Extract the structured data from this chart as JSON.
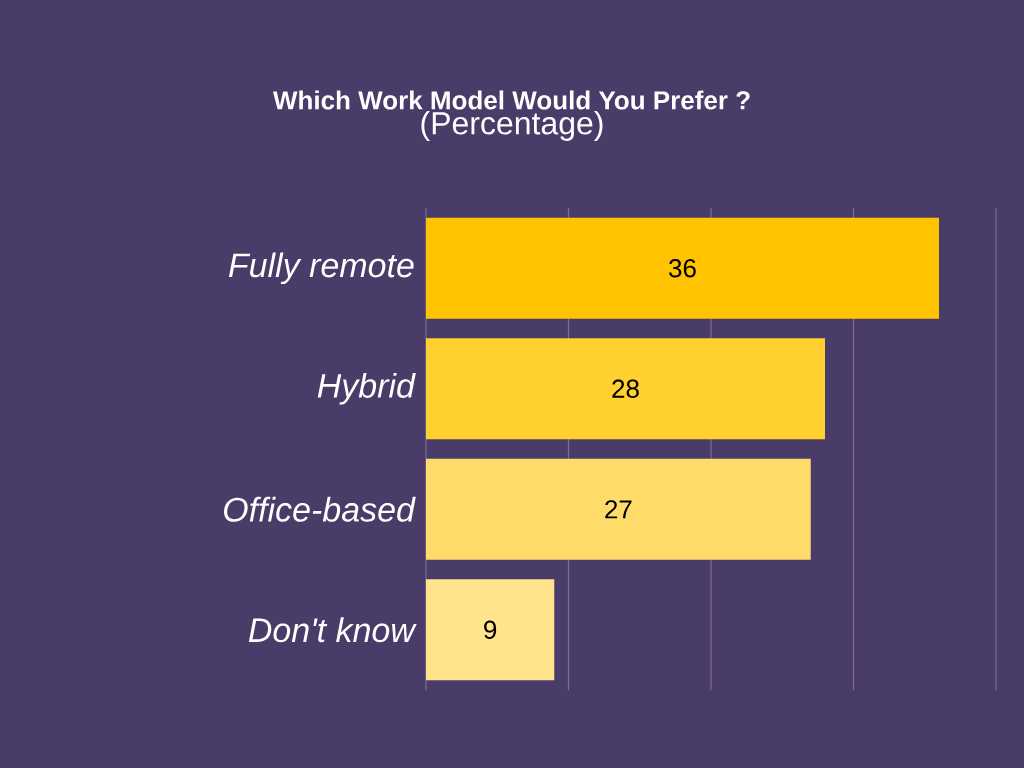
{
  "chart_data": {
    "type": "bar",
    "orientation": "horizontal",
    "title": "Which Work Model Would You Prefer ?",
    "subtitle": "(Percentage)",
    "categories": [
      "Fully remote",
      "Hybrid",
      "Office-based",
      "Don't know"
    ],
    "values": [
      36,
      28,
      27,
      9
    ],
    "colors": [
      "#ffc300",
      "#ffd02e",
      "#ffdc6a",
      "#ffe48c"
    ],
    "xlim": [
      0,
      40
    ],
    "xticks": [
      {
        "value": 0,
        "label": null
      },
      {
        "value": 10,
        "label": null
      },
      {
        "value": 20,
        "label": null
      },
      {
        "value": 30,
        "label": null
      },
      {
        "value": 40,
        "label": null
      }
    ],
    "grid": "x",
    "tick_labels": "y",
    "data_labels": true
  }
}
